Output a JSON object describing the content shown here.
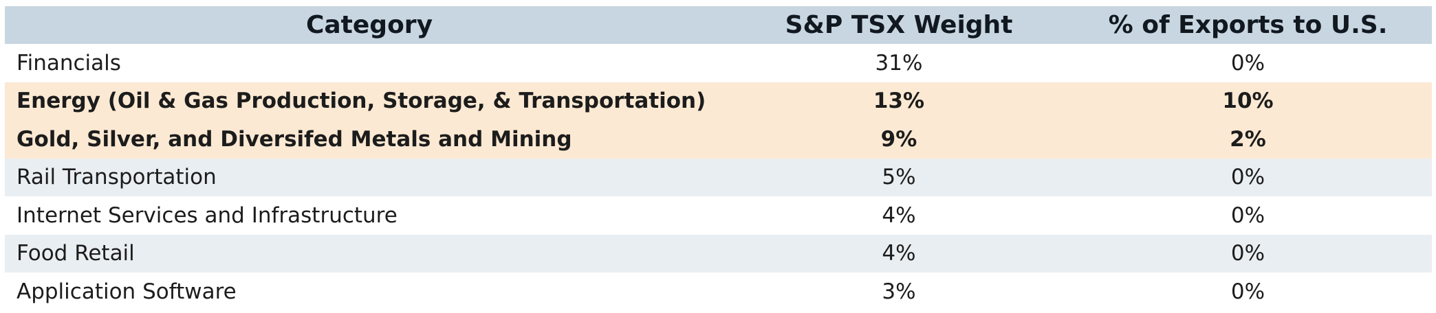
{
  "chart_data": {
    "type": "table",
    "columns": [
      "Category",
      "S&P TSX Weight",
      "% of Exports to U.S."
    ],
    "rows": [
      {
        "category": "Financials",
        "weight": "31%",
        "exports": "0%",
        "style": "white"
      },
      {
        "category": "Energy (Oil & Gas Production, Storage, & Transportation)",
        "weight": "13%",
        "exports": "10%",
        "style": "highlight"
      },
      {
        "category": "Gold, Silver, and Diversifed Metals and Mining",
        "weight": "9%",
        "exports": "2%",
        "style": "highlight"
      },
      {
        "category": "Rail Transportation",
        "weight": "5%",
        "exports": "0%",
        "style": "gray"
      },
      {
        "category": "Internet Services and Infrastructure",
        "weight": "4%",
        "exports": "0%",
        "style": "white"
      },
      {
        "category": "Food Retail",
        "weight": "4%",
        "exports": "0%",
        "style": "gray"
      },
      {
        "category": "Application Software",
        "weight": "3%",
        "exports": "0%",
        "style": "white"
      }
    ]
  },
  "colors": {
    "header_bg": "#c8d6e1",
    "highlight_bg": "#fce9d3",
    "stripe_bg": "#e9eef2"
  }
}
